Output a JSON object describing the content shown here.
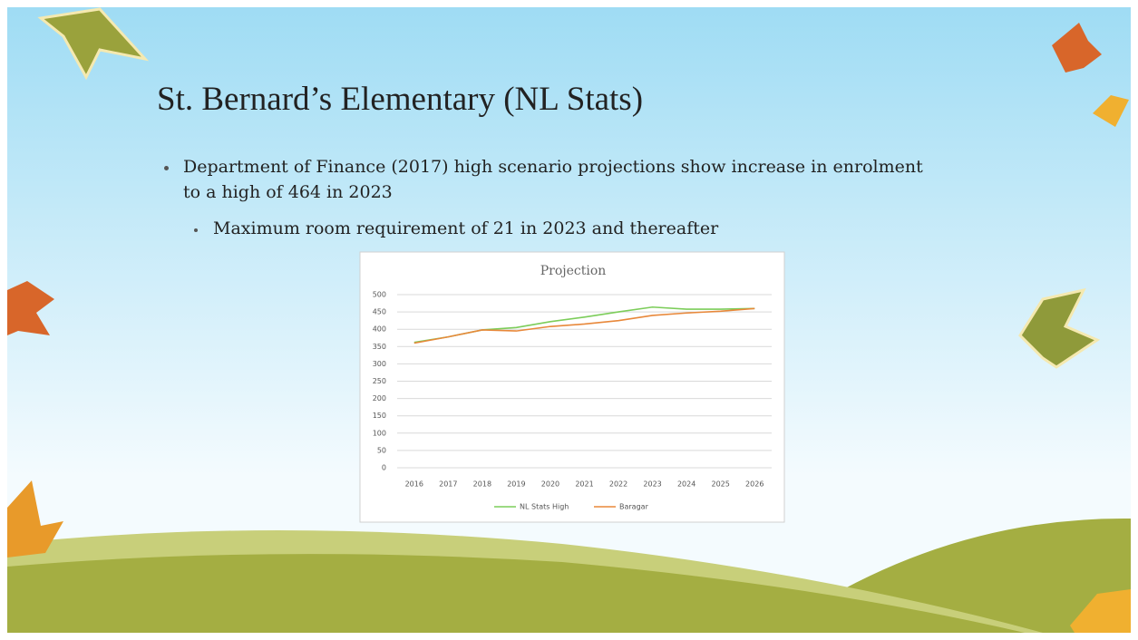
{
  "slide": {
    "title": "St. Bernard’s Elementary (NL Stats)",
    "bullets": [
      "Department  of Finance (2017) high scenario projections show increase in enrolment to a high of 464 in 2023",
      "Maximum room requirement of 21 in 2023 and thereafter"
    ]
  },
  "chart_data": {
    "type": "line",
    "title": "Projection",
    "categories": [
      "2016",
      "2017",
      "2018",
      "2019",
      "2020",
      "2021",
      "2022",
      "2023",
      "2024",
      "2025",
      "2026"
    ],
    "series": [
      {
        "name": "NL Stats High",
        "color": "#7ccd5a",
        "values": [
          362,
          378,
          398,
          405,
          422,
          435,
          450,
          464,
          458,
          458,
          460
        ]
      },
      {
        "name": "Baragar",
        "color": "#e8883a",
        "values": [
          360,
          378,
          398,
          395,
          408,
          415,
          425,
          440,
          447,
          452,
          460
        ]
      }
    ],
    "ylim": [
      0,
      500
    ],
    "yticks": [
      0,
      50,
      100,
      150,
      200,
      250,
      300,
      350,
      400,
      450,
      500
    ],
    "grid": true,
    "legend": "bottom"
  }
}
